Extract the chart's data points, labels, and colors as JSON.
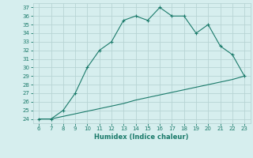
{
  "xlabel": "Humidex (Indice chaleur)",
  "x": [
    6,
    7,
    8,
    9,
    10,
    11,
    12,
    13,
    14,
    15,
    16,
    17,
    18,
    19,
    20,
    21,
    22,
    23
  ],
  "y_curve": [
    24,
    24,
    25,
    27,
    30,
    32,
    33,
    35.5,
    36,
    35.5,
    37,
    36,
    36,
    34,
    35,
    32.5,
    31.5,
    29
  ],
  "y_line": [
    24,
    24,
    24.3,
    24.6,
    24.9,
    25.2,
    25.5,
    25.8,
    26.2,
    26.5,
    26.8,
    27.1,
    27.4,
    27.7,
    28.0,
    28.3,
    28.6,
    29.0
  ],
  "line_color": "#1a7a6a",
  "bg_color": "#d6eeee",
  "grid_color": "#b8d4d4",
  "xlim": [
    5.5,
    23.5
  ],
  "ylim": [
    23.5,
    37.5
  ],
  "yticks": [
    24,
    25,
    26,
    27,
    28,
    29,
    30,
    31,
    32,
    33,
    34,
    35,
    36,
    37
  ],
  "xticks": [
    6,
    7,
    8,
    9,
    10,
    11,
    12,
    13,
    14,
    15,
    16,
    17,
    18,
    19,
    20,
    21,
    22,
    23
  ]
}
